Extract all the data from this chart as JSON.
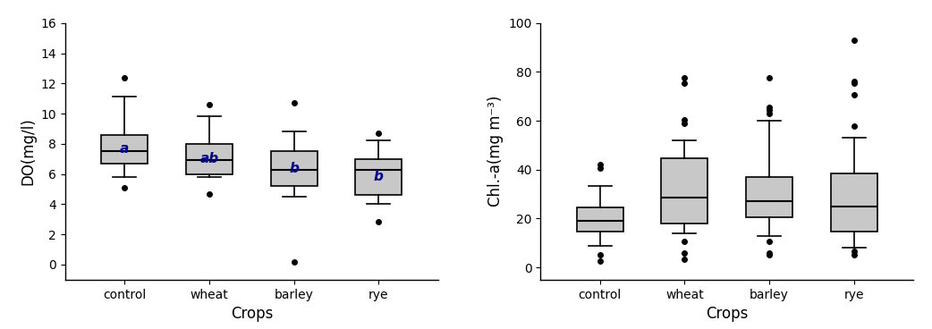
{
  "do_data": {
    "control": {
      "whislo": 5.8,
      "q1": 6.7,
      "med": 7.5,
      "q3": 8.6,
      "whishi": 11.1,
      "fliers": [
        12.4,
        5.1
      ]
    },
    "wheat": {
      "whislo": 5.8,
      "q1": 6.0,
      "med": 6.9,
      "q3": 8.0,
      "whishi": 9.8,
      "fliers": [
        10.6,
        4.65
      ]
    },
    "barley": {
      "whislo": 4.5,
      "q1": 5.2,
      "med": 6.3,
      "q3": 7.5,
      "whishi": 8.8,
      "fliers": [
        10.7,
        0.2
      ]
    },
    "rye": {
      "whislo": 4.0,
      "q1": 4.6,
      "med": 6.3,
      "q3": 7.0,
      "whishi": 8.2,
      "fliers": [
        8.7,
        2.85
      ]
    }
  },
  "chl_data": {
    "control": {
      "whislo": 9.0,
      "q1": 14.5,
      "med": 19.0,
      "q3": 24.5,
      "whishi": 33.5,
      "fliers": [
        40.5,
        42.0,
        2.5,
        5.0
      ]
    },
    "wheat": {
      "whislo": 14.0,
      "q1": 18.0,
      "med": 28.5,
      "q3": 44.5,
      "whishi": 52.0,
      "fliers": [
        59.0,
        60.5,
        75.5,
        77.5,
        10.5,
        6.0,
        3.5
      ]
    },
    "barley": {
      "whislo": 13.0,
      "q1": 20.5,
      "med": 27.0,
      "q3": 37.0,
      "whishi": 60.0,
      "fliers": [
        63.0,
        64.5,
        65.5,
        77.5,
        10.5,
        6.0,
        5.0
      ]
    },
    "rye": {
      "whislo": 8.0,
      "q1": 14.5,
      "med": 25.0,
      "q3": 38.5,
      "whishi": 53.0,
      "fliers": [
        58.0,
        70.5,
        75.5,
        76.0,
        93.0,
        6.5,
        5.0
      ]
    }
  },
  "do_ylim": [
    -1,
    16
  ],
  "do_yticks": [
    0,
    2,
    4,
    6,
    8,
    10,
    12,
    14,
    16
  ],
  "chl_ylim": [
    -5,
    100
  ],
  "chl_yticks": [
    0,
    20,
    40,
    60,
    80,
    100
  ],
  "categories": [
    "control",
    "wheat",
    "barley",
    "rye"
  ],
  "do_ylabel": "DO(mg/l)",
  "chl_ylabel": "Chl.-a(mg m⁻³)",
  "xlabel": "Crops",
  "do_labels": [
    "a",
    "ab",
    "b",
    "b"
  ],
  "box_color": "#c8c8c8",
  "box_edge_color": "#000000",
  "median_color": "#000000",
  "whisker_color": "#000000",
  "flier_color": "#000000",
  "label_color": "#00008B",
  "label_fontsize": 11,
  "axis_fontsize": 12,
  "tick_fontsize": 10
}
